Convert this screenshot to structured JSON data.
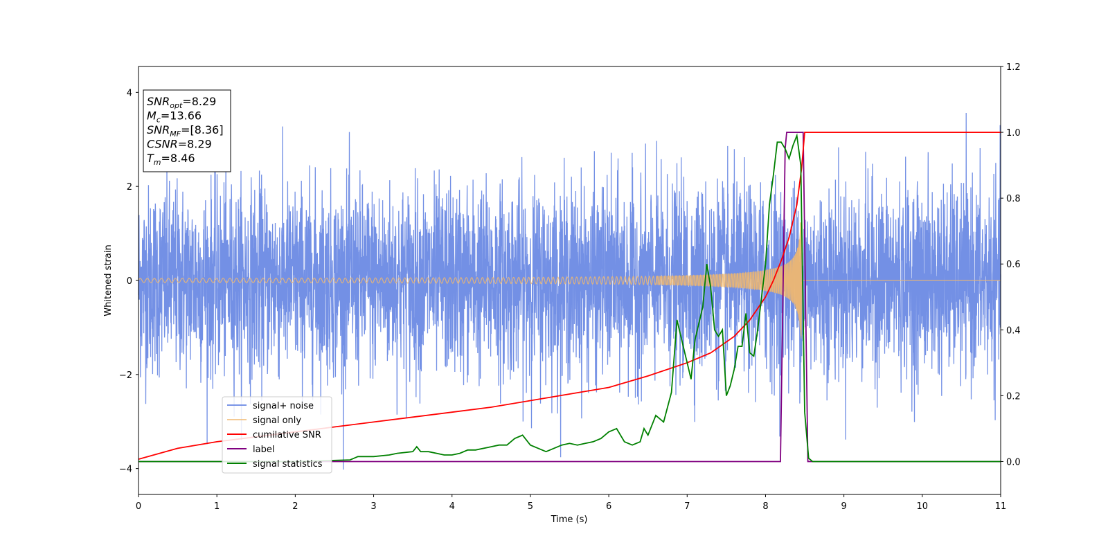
{
  "chart_data": {
    "type": "line",
    "title": "",
    "xlabel": "Time (s)",
    "ylabel": "Whitened strain",
    "xlim": [
      0,
      11
    ],
    "ylim": [
      -4.55,
      4.55
    ],
    "y2lim": [
      -0.1,
      1.2
    ],
    "x_ticks": [
      0,
      1,
      2,
      3,
      4,
      5,
      6,
      7,
      8,
      9,
      10,
      11
    ],
    "y_ticks": [
      -4,
      -2,
      0,
      2,
      4
    ],
    "y2_ticks": [
      "0.0",
      "0.2",
      "0.4",
      "0.6",
      "0.8",
      "1.0",
      "1.2"
    ],
    "grid": false,
    "legend_position": "lower-left",
    "colors": {
      "signal_noise": "#6c8ae4",
      "signal_only": "#f0b870",
      "cumulative_snr": "#ff0000",
      "label": "#800080",
      "signal_statistics": "#008000"
    },
    "annotation": {
      "lines": [
        {
          "main": "SNR",
          "sub": "opt",
          "value": "=8.29"
        },
        {
          "main": "M",
          "sub": "c",
          "value": "=13.66"
        },
        {
          "main": "SNR",
          "sub": "MF",
          "value": "=[8.36]"
        },
        {
          "main": "CSNR",
          "sub": "",
          "value": "=8.29"
        },
        {
          "main": "T",
          "sub": "m",
          "value": "=8.46"
        }
      ]
    },
    "series": [
      {
        "name": "signal+ noise",
        "axis": "left",
        "kind": "noise",
        "x_range": [
          0,
          11
        ],
        "sigma": 1.0,
        "ymin": -4.15,
        "ymax": 4.1
      },
      {
        "name": "signal only",
        "axis": "left",
        "kind": "chirp",
        "x_range": [
          0,
          11
        ],
        "merger_time": 8.46,
        "peak_amplitude": 1.4
      },
      {
        "name": "cumilative SNR",
        "axis": "right",
        "x": [
          0,
          0.5,
          1,
          1.5,
          2,
          2.5,
          3,
          3.5,
          4,
          4.5,
          5,
          5.5,
          6,
          6.5,
          7,
          7.3,
          7.6,
          7.8,
          8.0,
          8.1,
          8.2,
          8.3,
          8.4,
          8.46,
          8.5,
          9,
          10,
          11
        ],
        "values": [
          0.007,
          0.04,
          0.06,
          0.075,
          0.09,
          0.105,
          0.12,
          0.135,
          0.15,
          0.165,
          0.185,
          0.205,
          0.225,
          0.26,
          0.3,
          0.33,
          0.38,
          0.43,
          0.5,
          0.55,
          0.61,
          0.68,
          0.78,
          0.89,
          1.0,
          1.0,
          1.0,
          1.0
        ]
      },
      {
        "name": "label",
        "axis": "right",
        "x": [
          0,
          8.19,
          8.25,
          8.27,
          8.48,
          8.54,
          11
        ],
        "values": [
          0.0,
          0.0,
          0.95,
          1.0,
          1.0,
          0.0,
          0.0
        ]
      },
      {
        "name": "signal statistics",
        "axis": "right",
        "x": [
          0,
          1,
          2,
          2.7,
          2.8,
          3.0,
          3.2,
          3.3,
          3.5,
          3.55,
          3.6,
          3.7,
          3.9,
          4.0,
          4.1,
          4.2,
          4.3,
          4.5,
          4.6,
          4.7,
          4.8,
          4.9,
          5.0,
          5.1,
          5.2,
          5.3,
          5.4,
          5.5,
          5.6,
          5.7,
          5.8,
          5.9,
          6.0,
          6.1,
          6.2,
          6.3,
          6.4,
          6.45,
          6.5,
          6.6,
          6.7,
          6.8,
          6.87,
          6.95,
          7.0,
          7.05,
          7.1,
          7.2,
          7.25,
          7.3,
          7.35,
          7.4,
          7.45,
          7.5,
          7.55,
          7.6,
          7.65,
          7.7,
          7.75,
          7.8,
          7.85,
          7.9,
          8.0,
          8.05,
          8.1,
          8.15,
          8.2,
          8.25,
          8.3,
          8.35,
          8.4,
          8.45,
          8.5,
          8.55,
          8.6,
          11
        ],
        "values": [
          0.0,
          0.0,
          0.0,
          0.005,
          0.015,
          0.015,
          0.02,
          0.025,
          0.03,
          0.045,
          0.03,
          0.03,
          0.02,
          0.02,
          0.025,
          0.035,
          0.035,
          0.045,
          0.05,
          0.05,
          0.07,
          0.08,
          0.05,
          0.04,
          0.03,
          0.04,
          0.05,
          0.055,
          0.05,
          0.055,
          0.06,
          0.07,
          0.09,
          0.1,
          0.06,
          0.05,
          0.06,
          0.1,
          0.08,
          0.14,
          0.12,
          0.21,
          0.43,
          0.35,
          0.3,
          0.25,
          0.37,
          0.47,
          0.6,
          0.53,
          0.4,
          0.38,
          0.4,
          0.2,
          0.23,
          0.28,
          0.35,
          0.35,
          0.45,
          0.33,
          0.32,
          0.4,
          0.6,
          0.78,
          0.87,
          0.97,
          0.97,
          0.95,
          0.92,
          0.96,
          0.99,
          0.9,
          0.15,
          0.01,
          0.0,
          0.0
        ]
      }
    ]
  }
}
